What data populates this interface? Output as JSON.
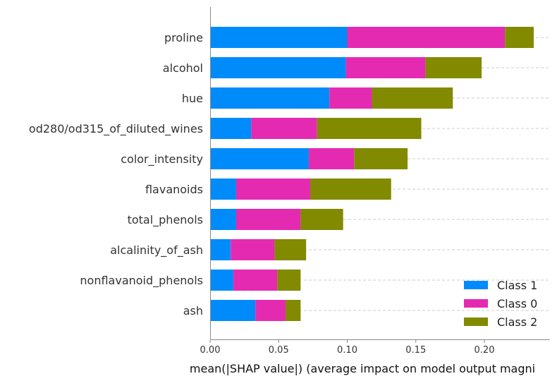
{
  "chart_data": {
    "type": "bar",
    "orientation": "horizontal",
    "stacked": true,
    "categories": [
      "proline",
      "alcohol",
      "hue",
      "od280/od315_of_diluted_wines",
      "color_intensity",
      "flavanoids",
      "total_phenols",
      "alcalinity_of_ash",
      "nonflavanoid_phenols",
      "ash"
    ],
    "series": [
      {
        "name": "Class 1",
        "color": "#008bfb",
        "values": [
          0.1,
          0.099,
          0.087,
          0.03,
          0.072,
          0.019,
          0.019,
          0.015,
          0.017,
          0.033
        ]
      },
      {
        "name": "Class 0",
        "color": "#e52ab2",
        "values": [
          0.115,
          0.058,
          0.031,
          0.048,
          0.033,
          0.054,
          0.047,
          0.032,
          0.032,
          0.022
        ]
      },
      {
        "name": "Class 2",
        "color": "#828a00",
        "values": [
          0.021,
          0.041,
          0.059,
          0.076,
          0.039,
          0.059,
          0.031,
          0.023,
          0.017,
          0.011
        ]
      }
    ],
    "xlabel": "mean(|SHAP value|) (average impact on model output magni",
    "ylabel": "",
    "xlim": [
      0,
      0.248
    ],
    "xticks": [
      "0.00",
      "0.05",
      "0.10",
      "0.15",
      "0.20"
    ],
    "xtick_values": [
      0,
      0.05,
      0.1,
      0.15,
      0.2
    ],
    "legend": [
      "Class 1",
      "Class 0",
      "Class 2"
    ],
    "legend_position": "lower-right",
    "grid": "dashed horizontal lines at each bar"
  }
}
